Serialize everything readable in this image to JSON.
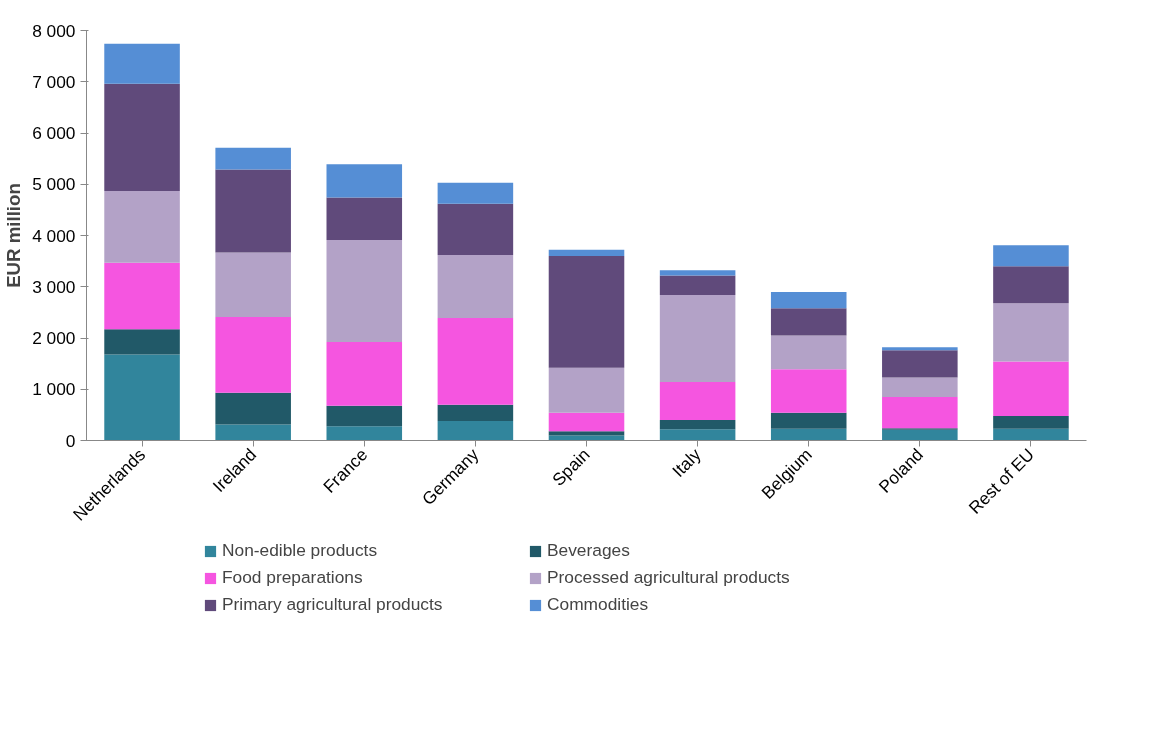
{
  "chart_data": {
    "type": "bar",
    "stacked": true,
    "ylabel": "EUR million",
    "categories": [
      "Netherlands",
      "Ireland",
      "France",
      "Germany",
      "Spain",
      "Italy",
      "Belgium",
      "Poland",
      "Rest of EU"
    ],
    "ylim": [
      0,
      8000
    ],
    "yticks": [
      {
        "value": 0,
        "label": "0"
      },
      {
        "value": 1000,
        "label": "1 000"
      },
      {
        "value": 2000,
        "label": "2 000"
      },
      {
        "value": 3000,
        "label": "3 000"
      },
      {
        "value": 4000,
        "label": "4 000"
      },
      {
        "value": 5000,
        "label": "5 000"
      },
      {
        "value": 6000,
        "label": "6 000"
      },
      {
        "value": 7000,
        "label": "7 000"
      },
      {
        "value": 8000,
        "label": "8 000"
      }
    ],
    "grid": false,
    "legend": "bottom",
    "series": [
      {
        "name": "Non-edible products",
        "color": "#31859c",
        "values": [
          1680,
          310,
          280,
          380,
          100,
          220,
          230,
          210,
          230
        ]
      },
      {
        "name": "Beverages",
        "color": "#215968",
        "values": [
          490,
          620,
          400,
          320,
          80,
          180,
          310,
          30,
          250
        ]
      },
      {
        "name": "Food preparations",
        "color": "#f555e0",
        "values": [
          1300,
          1480,
          1240,
          1690,
          360,
          740,
          850,
          610,
          1060
        ]
      },
      {
        "name": "Processed agricultural products",
        "color": "#b3a2c7",
        "values": [
          1400,
          1260,
          1990,
          1230,
          880,
          1700,
          660,
          380,
          1140
        ]
      },
      {
        "name": "Primary agricultural products",
        "color": "#604a7b",
        "values": [
          2090,
          1620,
          830,
          1000,
          2180,
          380,
          530,
          530,
          720
        ]
      },
      {
        "name": "Commodities",
        "color": "#558ed5",
        "values": [
          780,
          420,
          650,
          410,
          120,
          100,
          320,
          60,
          410
        ]
      }
    ]
  }
}
